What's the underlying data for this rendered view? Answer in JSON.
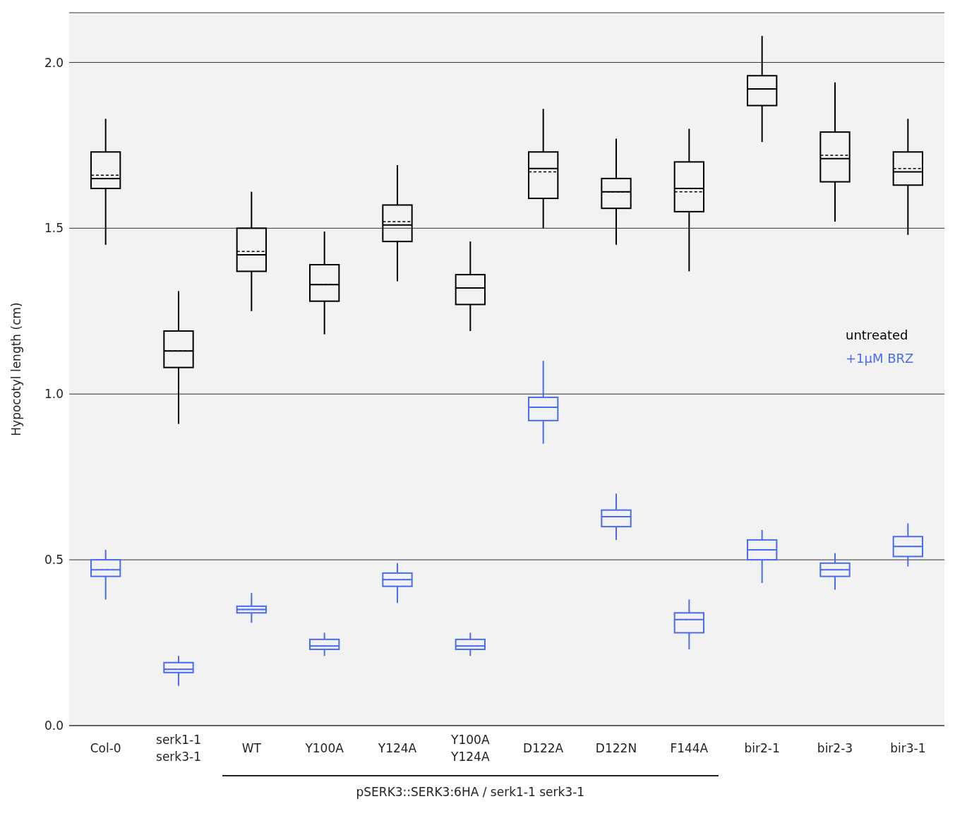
{
  "chart_data": {
    "type": "box",
    "ylabel": "Hypocotyl length (cm)",
    "categories": [
      "Col-0",
      "serk1-1\nserk3-1",
      "WT",
      "Y100A",
      "Y124A",
      "Y100A\nY124A",
      "D122A",
      "D122N",
      "F144A",
      "bir2-1",
      "bir2-3",
      "bir3-1"
    ],
    "ylim": [
      0,
      2.15
    ],
    "yticks": [
      {
        "value": 0,
        "label": "0.0"
      },
      {
        "value": 0.5,
        "label": "0.5"
      },
      {
        "value": 1,
        "label": "1.0"
      },
      {
        "value": 1.5,
        "label": "1.5"
      },
      {
        "value": 2,
        "label": "2.0"
      }
    ],
    "grid": "y",
    "legend": "right",
    "annotations": [
      "pSERK3::SERK3:6HA / serk1-1 serk3-1"
    ],
    "series": [
      {
        "name": "untreated",
        "color": "#000000",
        "boxes": [
          {
            "low": 1.45,
            "q1": 1.62,
            "median": 1.65,
            "q3": 1.73,
            "high": 1.83,
            "mean": 1.66
          },
          {
            "low": 0.91,
            "q1": 1.08,
            "median": 1.13,
            "q3": 1.19,
            "high": 1.31,
            "mean": 1.13
          },
          {
            "low": 1.25,
            "q1": 1.37,
            "median": 1.42,
            "q3": 1.5,
            "high": 1.61,
            "mean": 1.43
          },
          {
            "low": 1.18,
            "q1": 1.28,
            "median": 1.33,
            "q3": 1.39,
            "high": 1.49,
            "mean": 1.33
          },
          {
            "low": 1.34,
            "q1": 1.46,
            "median": 1.51,
            "q3": 1.57,
            "high": 1.69,
            "mean": 1.52
          },
          {
            "low": 1.19,
            "q1": 1.27,
            "median": 1.32,
            "q3": 1.36,
            "high": 1.46,
            "mean": 1.32
          },
          {
            "low": 1.5,
            "q1": 1.59,
            "median": 1.68,
            "q3": 1.73,
            "high": 1.86,
            "mean": 1.67
          },
          {
            "low": 1.45,
            "q1": 1.56,
            "median": 1.61,
            "q3": 1.65,
            "high": 1.77,
            "mean": 1.61
          },
          {
            "low": 1.37,
            "q1": 1.55,
            "median": 1.62,
            "q3": 1.7,
            "high": 1.8,
            "mean": 1.61
          },
          {
            "low": 1.76,
            "q1": 1.87,
            "median": 1.92,
            "q3": 1.96,
            "high": 2.08,
            "mean": 1.92
          },
          {
            "low": 1.52,
            "q1": 1.64,
            "median": 1.71,
            "q3": 1.79,
            "high": 1.94,
            "mean": 1.72
          },
          {
            "low": 1.48,
            "q1": 1.63,
            "median": 1.67,
            "q3": 1.73,
            "high": 1.83,
            "mean": 1.68
          }
        ]
      },
      {
        "name": "+1μM BRZ",
        "color": "#4a6cf0",
        "boxes": [
          {
            "low": 0.38,
            "q1": 0.45,
            "median": 0.47,
            "q3": 0.5,
            "high": 0.53,
            "mean": 0.47
          },
          {
            "low": 0.12,
            "q1": 0.16,
            "median": 0.17,
            "q3": 0.19,
            "high": 0.21,
            "mean": 0.17
          },
          {
            "low": 0.31,
            "q1": 0.34,
            "median": 0.35,
            "q3": 0.36,
            "high": 0.4,
            "mean": 0.35
          },
          {
            "low": 0.21,
            "q1": 0.23,
            "median": 0.24,
            "q3": 0.26,
            "high": 0.28,
            "mean": 0.24
          },
          {
            "low": 0.37,
            "q1": 0.42,
            "median": 0.44,
            "q3": 0.46,
            "high": 0.49,
            "mean": 0.44
          },
          {
            "low": 0.21,
            "q1": 0.23,
            "median": 0.24,
            "q3": 0.26,
            "high": 0.28,
            "mean": 0.24
          },
          {
            "low": 0.85,
            "q1": 0.92,
            "median": 0.96,
            "q3": 0.99,
            "high": 1.1,
            "mean": 0.96
          },
          {
            "low": 0.56,
            "q1": 0.6,
            "median": 0.63,
            "q3": 0.65,
            "high": 0.7,
            "mean": 0.63
          },
          {
            "low": 0.23,
            "q1": 0.28,
            "median": 0.32,
            "q3": 0.34,
            "high": 0.38,
            "mean": 0.32
          },
          {
            "low": 0.43,
            "q1": 0.5,
            "median": 0.53,
            "q3": 0.56,
            "high": 0.59,
            "mean": 0.53
          },
          {
            "low": 0.41,
            "q1": 0.45,
            "median": 0.47,
            "q3": 0.49,
            "high": 0.52,
            "mean": 0.47
          },
          {
            "low": 0.48,
            "q1": 0.51,
            "median": 0.54,
            "q3": 0.57,
            "high": 0.61,
            "mean": 0.54
          }
        ]
      }
    ]
  }
}
